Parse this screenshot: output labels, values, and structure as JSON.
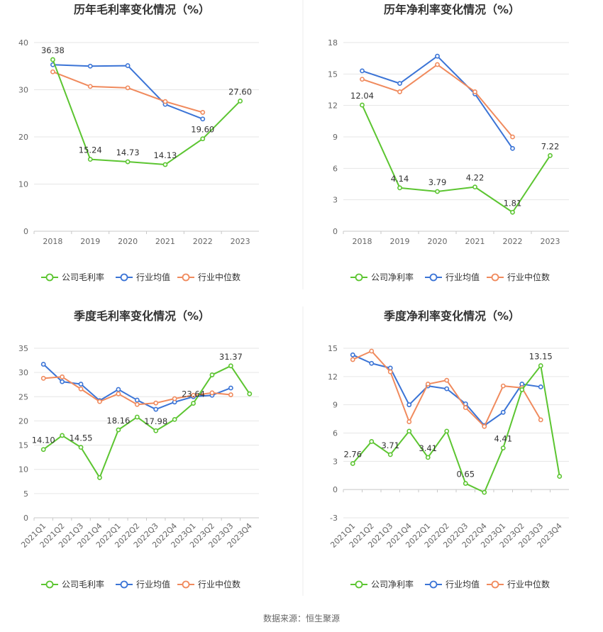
{
  "colors": {
    "company": "#5cc531",
    "industry_avg": "#3b74d6",
    "industry_median": "#f08a5d"
  },
  "source": "数据来源：恒生聚源",
  "legend_icon": "circle-line-icon",
  "chart_data": [
    {
      "type": "line",
      "title": "历年毛利率变化情况（%）",
      "categories": [
        "2018",
        "2019",
        "2020",
        "2021",
        "2022",
        "2023"
      ],
      "ylim": [
        0,
        40
      ],
      "yticks": [
        0,
        10,
        20,
        30,
        40
      ],
      "grid": true,
      "legend_placement": "bottom",
      "series": [
        {
          "name": "公司毛利率",
          "color_key": "company",
          "values": [
            36.38,
            15.24,
            14.73,
            14.13,
            19.6,
            27.6
          ],
          "labels": [
            "36.38",
            "15.24",
            "14.73",
            "14.13",
            "19.60",
            "27.60"
          ]
        },
        {
          "name": "行业均值",
          "color_key": "industry_avg",
          "values": [
            35.3,
            35.0,
            35.1,
            26.9,
            23.8,
            null
          ]
        },
        {
          "name": "行业中位数",
          "color_key": "industry_median",
          "values": [
            33.8,
            30.7,
            30.4,
            27.5,
            25.2,
            null
          ]
        }
      ]
    },
    {
      "type": "line",
      "title": "历年净利率变化情况（%）",
      "categories": [
        "2018",
        "2019",
        "2020",
        "2021",
        "2022",
        "2023"
      ],
      "ylim": [
        0,
        18
      ],
      "yticks": [
        0,
        3,
        6,
        9,
        12,
        15,
        18
      ],
      "grid": true,
      "legend_placement": "bottom",
      "series": [
        {
          "name": "公司净利率",
          "color_key": "company",
          "values": [
            12.04,
            4.14,
            3.79,
            4.22,
            1.81,
            7.22
          ],
          "labels": [
            "12.04",
            "4.14",
            "3.79",
            "4.22",
            "1.81",
            "7.22"
          ]
        },
        {
          "name": "行业均值",
          "color_key": "industry_avg",
          "values": [
            15.3,
            14.1,
            16.7,
            13.1,
            7.9,
            null
          ]
        },
        {
          "name": "行业中位数",
          "color_key": "industry_median",
          "values": [
            14.5,
            13.3,
            15.9,
            13.3,
            9.0,
            null
          ]
        }
      ]
    },
    {
      "type": "line",
      "title": "季度毛利率变化情况（%）",
      "categories": [
        "2021Q1",
        "2021Q2",
        "2021Q3",
        "2021Q4",
        "2022Q1",
        "2022Q2",
        "2022Q3",
        "2022Q4",
        "2023Q1",
        "2023Q2",
        "2023Q3",
        "2023Q4"
      ],
      "ylim": [
        0,
        35
      ],
      "yticks": [
        0,
        5,
        10,
        15,
        20,
        25,
        30,
        35
      ],
      "grid": true,
      "legend_placement": "bottom",
      "series": [
        {
          "name": "公司毛利率",
          "color_key": "company",
          "values": [
            14.1,
            17.0,
            14.55,
            8.3,
            18.16,
            20.8,
            17.98,
            20.3,
            23.64,
            29.5,
            31.37,
            25.6
          ],
          "labels": [
            "14.10",
            "",
            "14.55",
            "",
            "18.16",
            "",
            "17.98",
            "",
            "23.64",
            "",
            "31.37",
            ""
          ]
        },
        {
          "name": "行业均值",
          "color_key": "industry_avg",
          "values": [
            31.7,
            28.1,
            27.6,
            24.2,
            26.5,
            24.3,
            22.4,
            23.9,
            25.0,
            25.3,
            26.8,
            null
          ]
        },
        {
          "name": "行业中位数",
          "color_key": "industry_median",
          "values": [
            28.8,
            29.1,
            26.6,
            24.0,
            25.6,
            23.4,
            23.7,
            24.6,
            25.3,
            25.8,
            25.4,
            null
          ]
        }
      ]
    },
    {
      "type": "line",
      "title": "季度净利率变化情况（%）",
      "categories": [
        "2021Q1",
        "2021Q2",
        "2021Q3",
        "2021Q4",
        "2022Q1",
        "2022Q2",
        "2022Q3",
        "2022Q4",
        "2023Q1",
        "2023Q2",
        "2023Q3",
        "2023Q4"
      ],
      "ylim": [
        -3,
        15
      ],
      "yticks": [
        -3,
        0,
        3,
        6,
        9,
        12,
        15
      ],
      "grid": true,
      "legend_placement": "bottom",
      "series": [
        {
          "name": "公司净利率",
          "color_key": "company",
          "values": [
            2.76,
            5.1,
            3.71,
            6.2,
            3.41,
            6.2,
            0.65,
            -0.3,
            4.41,
            10.6,
            13.15,
            1.4
          ],
          "labels": [
            "2.76",
            "",
            "3.71",
            "",
            "3.41",
            "",
            "0.65",
            "",
            "4.41",
            "",
            "13.15",
            ""
          ]
        },
        {
          "name": "行业均值",
          "color_key": "industry_avg",
          "values": [
            14.3,
            13.4,
            12.9,
            9.0,
            11.0,
            10.7,
            9.1,
            6.8,
            8.2,
            11.2,
            10.9,
            null
          ]
        },
        {
          "name": "行业中位数",
          "color_key": "industry_median",
          "values": [
            13.8,
            14.7,
            12.5,
            7.2,
            11.2,
            11.6,
            8.7,
            6.7,
            11.0,
            10.8,
            7.4,
            null
          ]
        }
      ]
    }
  ]
}
